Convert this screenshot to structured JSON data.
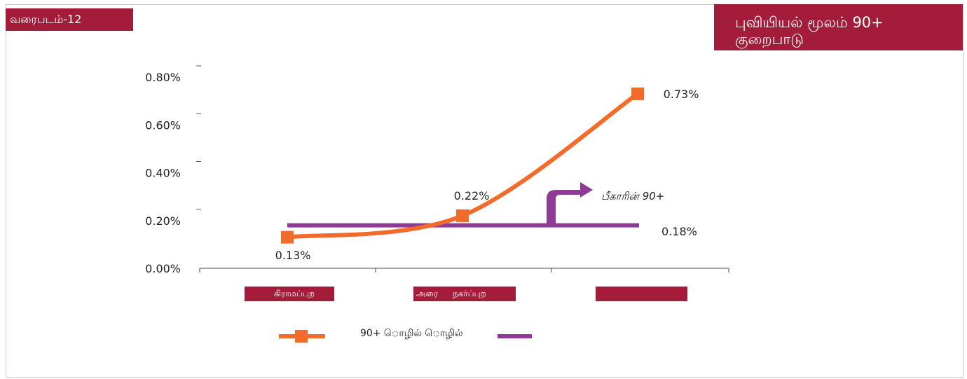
{
  "figure_label": "வரைபடம்-12",
  "title": "புவியியல் மூலம் 90+ குறைபாடு",
  "colors": {
    "accent": "#a31d3b",
    "series_line": "#f26b2a",
    "reference_line": "#8e3a96"
  },
  "categories": [
    {
      "label_a": "கிராமப்புற",
      "label_b": ""
    },
    {
      "label_a": "அரை",
      "label_b": "நகர்ப்புற"
    },
    {
      "label_a": "",
      "label_b": ""
    }
  ],
  "annotation": "பீகாரின் 90+",
  "legend_label": "90+ ொழில் ொழில்",
  "chart_data": {
    "type": "line",
    "title": "புவியியல் மூலம் 90+ குறைபாடு",
    "categories": [
      "கிராமப்புற",
      "அரை நகர்ப்புற",
      ""
    ],
    "yticks": [
      "0.00%",
      "0.20%",
      "0.40%",
      "0.60%",
      "0.80%"
    ],
    "ylim": [
      0,
      0.8
    ],
    "series": [
      {
        "name": "90+ ொழில் ொழில்",
        "values": [
          0.13,
          0.22,
          0.73
        ],
        "labels": [
          "0.13%",
          "0.22%",
          "0.73%"
        ]
      }
    ],
    "reference": {
      "name": "பீகாரின் 90+",
      "value": 0.18,
      "label": "0.18%"
    },
    "legend": "bottom",
    "grid": false
  }
}
